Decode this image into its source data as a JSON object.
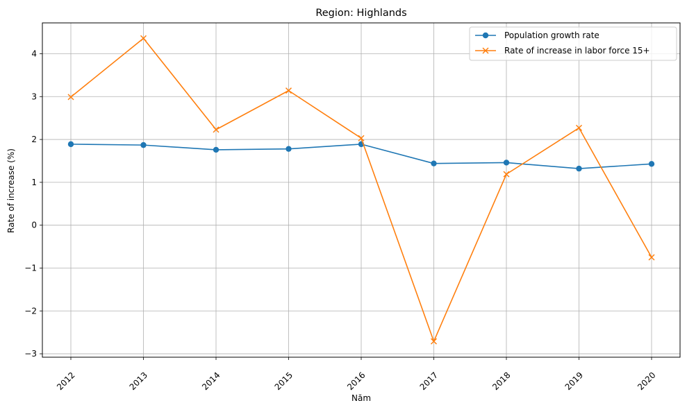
{
  "chart_data": {
    "type": "line",
    "title": "Region: Highlands",
    "xlabel": "Năm",
    "ylabel": "Rate of increase (%)",
    "categories": [
      "2012",
      "2013",
      "2014",
      "2015",
      "2016",
      "2017",
      "2018",
      "2019",
      "2020"
    ],
    "yticks": [
      -3,
      -2,
      -1,
      0,
      1,
      2,
      3,
      4
    ],
    "ytick_labels": [
      "−3",
      "−2",
      "−1",
      "0",
      "1",
      "2",
      "3",
      "4"
    ],
    "ylim": [
      -3.08,
      4.72
    ],
    "grid": true,
    "legend_position": "top-right",
    "series": [
      {
        "name": "Population growth rate",
        "color": "#1f77b4",
        "marker": "circle",
        "values": [
          1.89,
          1.87,
          1.76,
          1.78,
          1.89,
          1.44,
          1.46,
          1.32,
          1.43
        ]
      },
      {
        "name": "Rate of increase in labor force 15+",
        "color": "#ff7f0e",
        "marker": "x",
        "values": [
          2.99,
          4.36,
          2.23,
          3.14,
          2.03,
          -2.71,
          1.19,
          2.27,
          -0.75
        ]
      }
    ]
  }
}
